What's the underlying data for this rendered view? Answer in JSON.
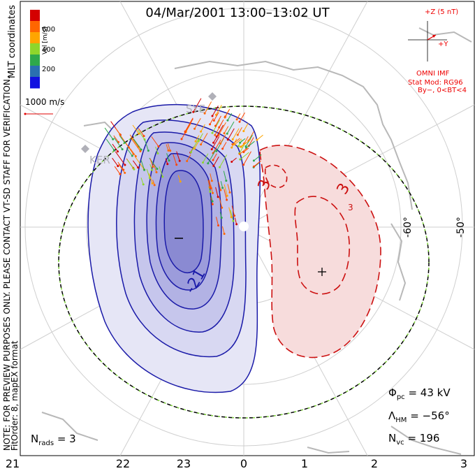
{
  "title": "04/Mar/2001 13:00–13:02 UT",
  "side_text": {
    "coords": "MLT coordinates",
    "note": "NOTE: FOR PREVIEW PURPOSES ONLY. PLEASE CONTACT VT-SD STAFF FOR VERIFICATION.",
    "fit": "FitOrder: 8, mapEX format"
  },
  "colorbar": {
    "label": "Vel [m/s]",
    "ticks": [
      "600",
      "400",
      "200"
    ],
    "colors": [
      "#d40000",
      "#ff6600",
      "#ffa500",
      "#8ed62b",
      "#2ea84b",
      "#2a6fb0",
      "#1010e0"
    ]
  },
  "velocity_scale": {
    "label": "1000 m/s",
    "color": "#e00000"
  },
  "imf": {
    "z_label": "+Z (5 nT)",
    "y_label": "+Y",
    "source": "OMNI IMF",
    "model": "Stat Mod: RG96",
    "conditions": "By−, 0<BT<4",
    "color": "#e00000"
  },
  "stations": [
    "SYE",
    "KER"
  ],
  "latitude_labels": [
    "-60°",
    "-50°"
  ],
  "contours": {
    "negative_labels": [
      "-21"
    ],
    "positive_labels": [
      "3",
      "3",
      "3"
    ],
    "min_marker": "−",
    "max_marker": "+",
    "negative_color": "#1a1aa8",
    "positive_color": "#cc1010"
  },
  "stats": {
    "phi_pc_label": "Φ",
    "phi_pc_sub": "pc",
    "phi_pc_value": "= 43 kV",
    "lambda_label": "Λ",
    "lambda_sub": "HM",
    "lambda_value": "= −56°",
    "nvc_label": "N",
    "nvc_sub": "vc",
    "nvc_value": "= 196",
    "nrads_label": "N",
    "nrads_sub": "rads",
    "nrads_value": "= 3"
  },
  "mlt_labels": [
    "21",
    "22",
    "23",
    "0",
    "1",
    "2",
    "3"
  ]
}
